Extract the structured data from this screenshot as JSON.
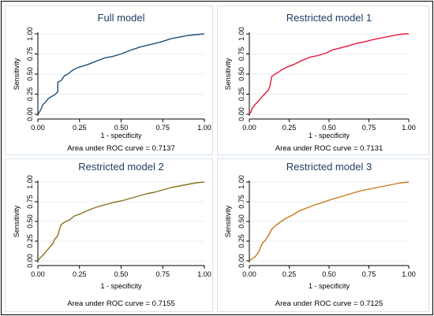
{
  "chart_data": [
    {
      "type": "line",
      "title": "Full model",
      "xlabel": "1 - specificity",
      "ylabel": "Sensitivity",
      "xlim": [
        0,
        1
      ],
      "ylim": [
        0,
        1
      ],
      "xticks": [
        "0.00",
        "0.25",
        "0.50",
        "0.75",
        "1.00"
      ],
      "yticks": [
        "0.00",
        "0.25",
        "0.50",
        "0.75",
        "1.00"
      ],
      "grid": true,
      "color": "#1f4e79",
      "note": "Area under ROC curve = 0.7137",
      "series": [
        {
          "x": [
            0,
            0.01,
            0.02,
            0.03,
            0.05,
            0.06,
            0.08,
            0.1,
            0.11,
            0.12,
            0.12,
            0.14,
            0.16,
            0.18,
            0.21,
            0.24,
            0.3,
            0.35,
            0.4,
            0.45,
            0.5,
            0.56,
            0.62,
            0.68,
            0.74,
            0.8,
            0.85,
            0.9,
            0.95,
            1
          ],
          "y": [
            0,
            0.03,
            0.07,
            0.12,
            0.16,
            0.19,
            0.22,
            0.24,
            0.26,
            0.28,
            0.4,
            0.42,
            0.48,
            0.5,
            0.55,
            0.58,
            0.62,
            0.66,
            0.7,
            0.72,
            0.75,
            0.8,
            0.84,
            0.87,
            0.9,
            0.94,
            0.96,
            0.98,
            0.99,
            1
          ]
        }
      ]
    },
    {
      "type": "line",
      "title": "Restricted model 1",
      "xlabel": "1 - specificity",
      "ylabel": "Sensitivity",
      "xlim": [
        0,
        1
      ],
      "ylim": [
        0,
        1
      ],
      "xticks": [
        "0.00",
        "0.25",
        "0.50",
        "0.75",
        "1.00"
      ],
      "yticks": [
        "0.00",
        "0.25",
        "0.50",
        "0.75",
        "1.00"
      ],
      "grid": true,
      "color": "#e8173c",
      "note": "Area under ROC curve = 0.7131",
      "series": [
        {
          "x": [
            0,
            0.01,
            0.02,
            0.04,
            0.06,
            0.08,
            0.1,
            0.12,
            0.13,
            0.14,
            0.16,
            0.18,
            0.2,
            0.24,
            0.28,
            0.33,
            0.38,
            0.43,
            0.48,
            0.52,
            0.56,
            0.62,
            0.67,
            0.72,
            0.78,
            0.83,
            0.88,
            0.93,
            0.97,
            1
          ],
          "y": [
            0,
            0.03,
            0.08,
            0.13,
            0.17,
            0.22,
            0.26,
            0.3,
            0.36,
            0.47,
            0.5,
            0.52,
            0.55,
            0.59,
            0.62,
            0.67,
            0.71,
            0.73,
            0.76,
            0.8,
            0.82,
            0.85,
            0.88,
            0.9,
            0.93,
            0.95,
            0.97,
            0.99,
            1,
            1
          ]
        }
      ]
    },
    {
      "type": "line",
      "title": "Restricted model 2",
      "xlabel": "1 - specificity",
      "ylabel": "Sensitivity",
      "xlim": [
        0,
        1
      ],
      "ylim": [
        0,
        1
      ],
      "xticks": [
        "0.00",
        "0.25",
        "0.50",
        "0.75",
        "1.00"
      ],
      "yticks": [
        "0.00",
        "0.25",
        "0.50",
        "0.75",
        "1.00"
      ],
      "grid": true,
      "color": "#8b7320",
      "note": "Area under ROC curve = 0.7155",
      "series": [
        {
          "x": [
            0,
            0.01,
            0.03,
            0.05,
            0.07,
            0.09,
            0.1,
            0.12,
            0.13,
            0.14,
            0.16,
            0.19,
            0.22,
            0.26,
            0.3,
            0.35,
            0.4,
            0.45,
            0.5,
            0.55,
            0.6,
            0.65,
            0.7,
            0.75,
            0.8,
            0.85,
            0.9,
            0.95,
            1
          ],
          "y": [
            0,
            0.03,
            0.07,
            0.12,
            0.17,
            0.22,
            0.27,
            0.32,
            0.4,
            0.46,
            0.49,
            0.52,
            0.57,
            0.6,
            0.64,
            0.68,
            0.71,
            0.74,
            0.76,
            0.79,
            0.82,
            0.85,
            0.87,
            0.9,
            0.93,
            0.95,
            0.97,
            0.99,
            1
          ]
        }
      ]
    },
    {
      "type": "line",
      "title": "Restricted model 3",
      "xlabel": "1 - specificity",
      "ylabel": "Sensitivity",
      "xlim": [
        0,
        1
      ],
      "ylim": [
        0,
        1
      ],
      "xticks": [
        "0.00",
        "0.25",
        "0.50",
        "0.75",
        "1.00"
      ],
      "yticks": [
        "0.00",
        "0.25",
        "0.50",
        "0.75",
        "1.00"
      ],
      "grid": true,
      "color": "#c8781a",
      "note": "Area under ROC curve = 0.7125",
      "series": [
        {
          "x": [
            0,
            0.02,
            0.04,
            0.06,
            0.08,
            0.1,
            0.12,
            0.14,
            0.16,
            0.18,
            0.2,
            0.23,
            0.27,
            0.31,
            0.36,
            0.41,
            0.46,
            0.5,
            0.55,
            0.6,
            0.65,
            0.7,
            0.75,
            0.8,
            0.85,
            0.9,
            0.95,
            1
          ],
          "y": [
            0,
            0.03,
            0.06,
            0.12,
            0.22,
            0.26,
            0.32,
            0.4,
            0.44,
            0.47,
            0.5,
            0.54,
            0.58,
            0.63,
            0.67,
            0.71,
            0.74,
            0.77,
            0.8,
            0.83,
            0.86,
            0.89,
            0.91,
            0.93,
            0.95,
            0.97,
            0.99,
            1
          ]
        }
      ]
    }
  ]
}
